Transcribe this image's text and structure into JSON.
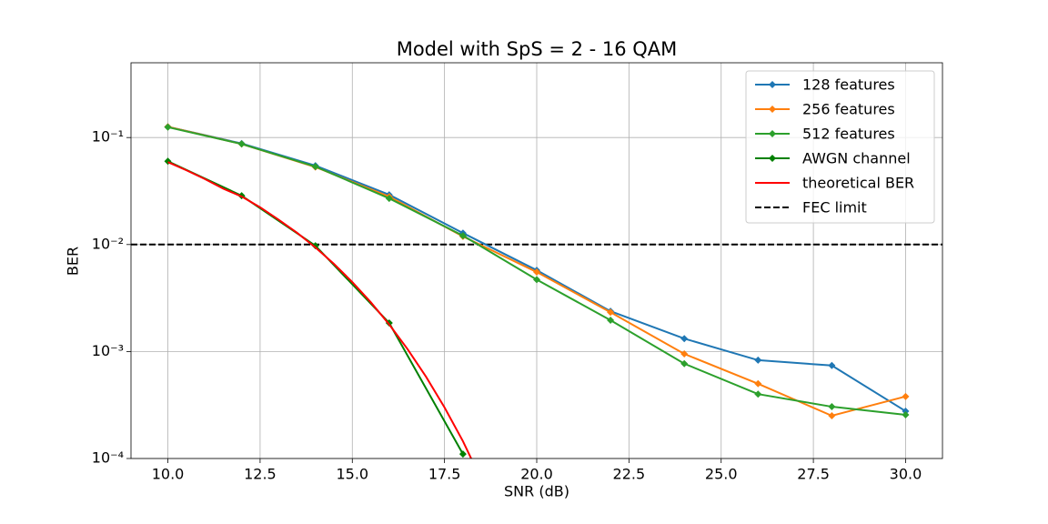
{
  "chart_data": {
    "type": "line",
    "title": "Model with SpS = 2 - 16 QAM",
    "xlabel": "SNR (dB)",
    "ylabel": "BER",
    "x": [
      10,
      12,
      14,
      16,
      18,
      20,
      22,
      24,
      26,
      28,
      30
    ],
    "series": [
      {
        "name": "128 features",
        "color": "#1f77b4",
        "marker": "diamond",
        "values": [
          0.126,
          0.088,
          0.0546,
          0.0292,
          0.0128,
          0.00575,
          0.00238,
          0.00132,
          0.00083,
          0.00074,
          0.000277
        ]
      },
      {
        "name": "256 features",
        "color": "#ff7f0e",
        "marker": "diamond",
        "values": [
          0.126,
          0.087,
          0.053,
          0.028,
          0.0119,
          0.00553,
          0.00233,
          0.00095,
          0.0005,
          0.000251,
          0.00038
        ]
      },
      {
        "name": "512 features",
        "color": "#2ca02c",
        "marker": "diamond",
        "values": [
          0.125,
          0.087,
          0.0535,
          0.027,
          0.0121,
          0.0047,
          0.00196,
          0.00077,
          0.0004,
          0.000305,
          0.000256
        ]
      },
      {
        "name": "AWGN channel",
        "color": "#008000",
        "marker": "diamond",
        "values": [
          0.06,
          0.0286,
          0.00975,
          0.00185,
          0.00011,
          null,
          null,
          null,
          null,
          null,
          null
        ]
      },
      {
        "name": "theoretical BER",
        "color": "#ff0000",
        "marker": "none",
        "x": [
          10,
          10.5,
          11,
          11.5,
          12,
          12.5,
          13,
          13.5,
          14,
          14.5,
          15,
          15.5,
          16,
          16.5,
          17,
          17.5,
          18,
          18.5
        ],
        "values": [
          0.059,
          0.0495,
          0.041,
          0.0333,
          0.0281,
          0.0223,
          0.0171,
          0.0129,
          0.0094,
          0.0066,
          0.00446,
          0.00289,
          0.00179,
          0.00105,
          0.00058,
          0.0003,
          0.000145,
          6.3e-05
        ]
      }
    ],
    "hline": {
      "name": "FEC limit",
      "value": 0.01,
      "color": "#000000",
      "style": "dashed"
    },
    "xlim": [
      9,
      31
    ],
    "xticks": [
      {
        "value": 10,
        "label": "10.0"
      },
      {
        "value": 12.5,
        "label": "12.5"
      },
      {
        "value": 15,
        "label": "15.0"
      },
      {
        "value": 17.5,
        "label": "17.5"
      },
      {
        "value": 20,
        "label": "20.0"
      },
      {
        "value": 22.5,
        "label": "22.5"
      },
      {
        "value": 25,
        "label": "25.0"
      },
      {
        "value": 27.5,
        "label": "27.5"
      },
      {
        "value": 30,
        "label": "30.0"
      }
    ],
    "ylim": [
      0.0001,
      0.5
    ],
    "yscale": "log",
    "yticks": [
      {
        "value": 0.0001,
        "label": "10⁻⁴"
      },
      {
        "value": 0.001,
        "label": "10⁻³"
      },
      {
        "value": 0.01,
        "label": "10⁻²"
      },
      {
        "value": 0.1,
        "label": "10⁻¹"
      }
    ],
    "grid": true,
    "legend": "upper right"
  }
}
